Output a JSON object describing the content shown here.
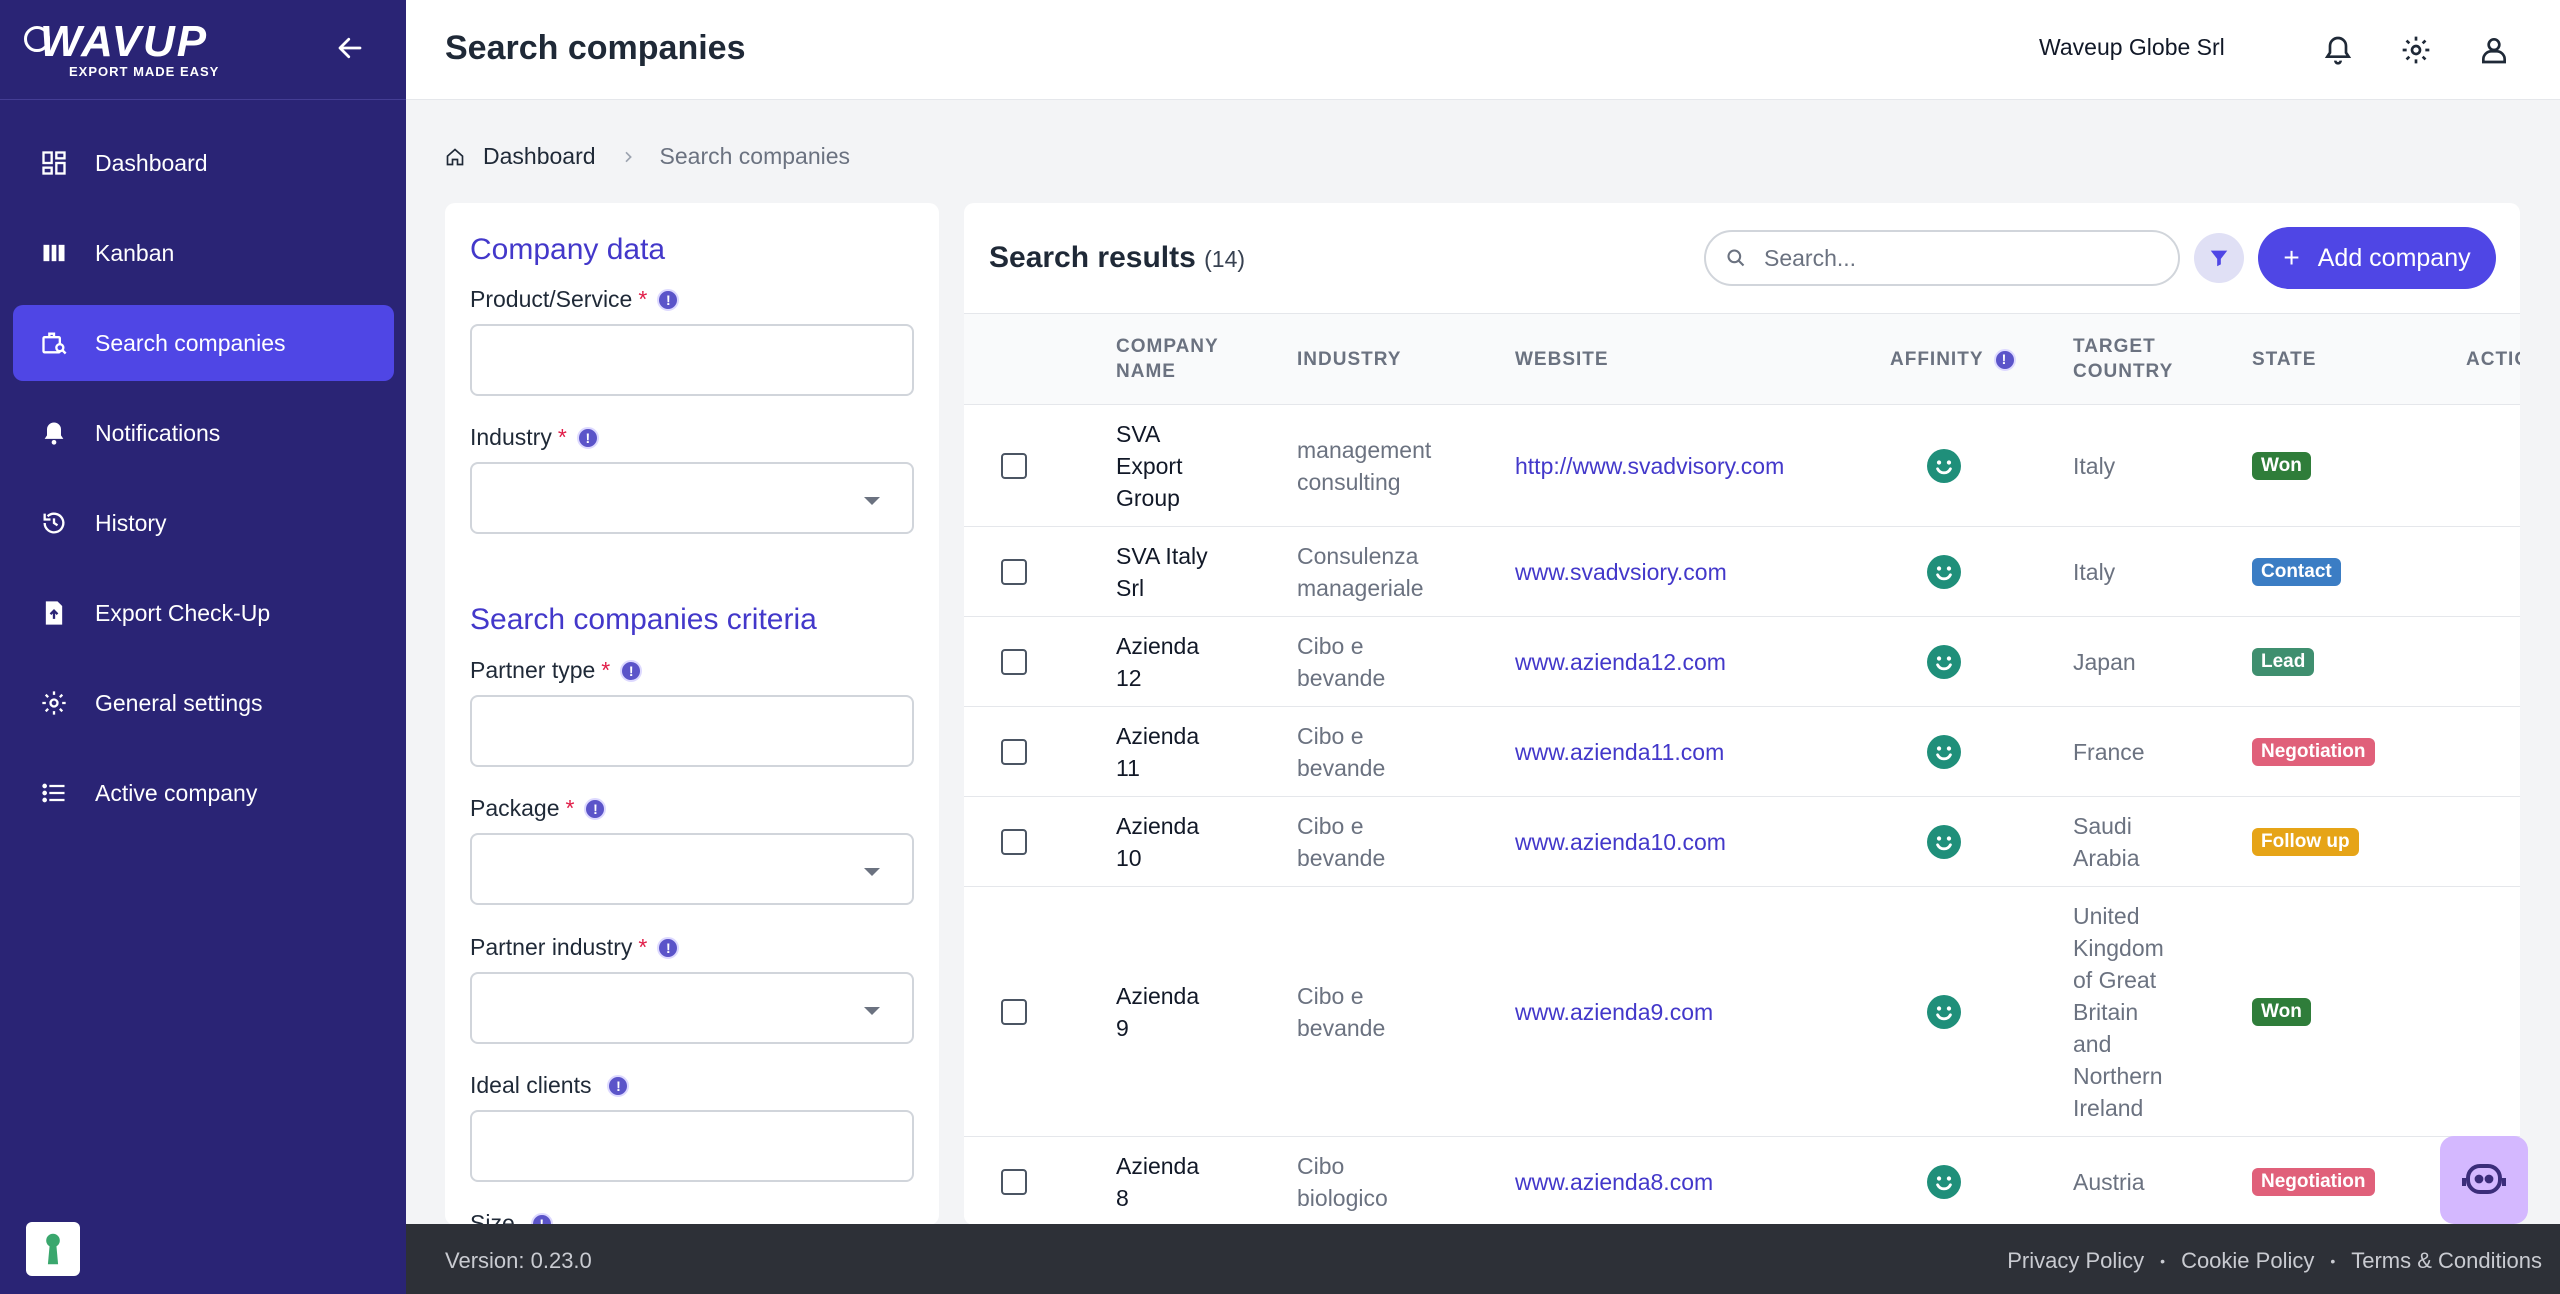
{
  "brand": {
    "name": "WAVUP",
    "tagline": "EXPORT MADE EASY"
  },
  "sidebar": {
    "items": [
      {
        "label": "Dashboard",
        "icon": "dashboard-icon"
      },
      {
        "label": "Kanban",
        "icon": "kanban-icon"
      },
      {
        "label": "Search companies",
        "icon": "search-companies-icon",
        "active": true
      },
      {
        "label": "Notifications",
        "icon": "bell-icon"
      },
      {
        "label": "History",
        "icon": "history-icon"
      },
      {
        "label": "Export Check-Up",
        "icon": "export-checkup-icon"
      },
      {
        "label": "General settings",
        "icon": "gear-icon"
      },
      {
        "label": "Active company",
        "icon": "list-icon"
      }
    ]
  },
  "header": {
    "title": "Search companies",
    "organization": "Waveup Globe Srl"
  },
  "breadcrumb": {
    "home": "Dashboard",
    "current": "Search companies"
  },
  "form": {
    "company_data_title": "Company data",
    "product_label": "Product/Service",
    "industry_label": "Industry",
    "criteria_title": "Search companies criteria",
    "partner_type_label": "Partner type",
    "package_label": "Package",
    "partner_industry_label": "Partner industry",
    "ideal_clients_label": "Ideal clients",
    "size_label": "Size",
    "required_mark": "*",
    "info_mark": "!"
  },
  "results": {
    "title": "Search results",
    "count": "(14)",
    "search_placeholder": "Search...",
    "add_label": "Add company",
    "add_plus": "+",
    "columns": {
      "name": [
        "COMPANY",
        "NAME"
      ],
      "industry": "INDUSTRY",
      "website": "WEBSITE",
      "affinity": "AFFINITY",
      "country": [
        "TARGET",
        "COUNTRY"
      ],
      "state": "STATE",
      "actions": "ACTIONS"
    },
    "rows": [
      {
        "name": [
          "SVA",
          "Export",
          "Group"
        ],
        "industry": [
          "management",
          "consulting"
        ],
        "website": "http://www.svadvisory.com",
        "country": [
          "Italy"
        ],
        "state": "Won"
      },
      {
        "name": [
          "SVA Italy",
          "Srl"
        ],
        "industry": [
          "Consulenza",
          "manageriale"
        ],
        "website": "www.svadvsiory.com",
        "country": [
          "Italy"
        ],
        "state": "Contact"
      },
      {
        "name": [
          "Azienda",
          "12"
        ],
        "industry": [
          "Cibo e",
          "bevande"
        ],
        "website": "www.azienda12.com",
        "country": [
          "Japan"
        ],
        "state": "Lead"
      },
      {
        "name": [
          "Azienda",
          "11"
        ],
        "industry": [
          "Cibo e",
          "bevande"
        ],
        "website": "www.azienda11.com",
        "country": [
          "France"
        ],
        "state": "Negotiation"
      },
      {
        "name": [
          "Azienda",
          "10"
        ],
        "industry": [
          "Cibo e",
          "bevande"
        ],
        "website": "www.azienda10.com",
        "country": [
          "Saudi",
          "Arabia"
        ],
        "state": "Follow up"
      },
      {
        "name": [
          "Azienda",
          "9"
        ],
        "industry": [
          "Cibo e",
          "bevande"
        ],
        "website": "www.azienda9.com",
        "country": [
          "United",
          "Kingdom",
          "of Great",
          "Britain",
          "and",
          "Northern",
          "Ireland"
        ],
        "state": "Won"
      },
      {
        "name": [
          "Azienda",
          "8"
        ],
        "industry": [
          "Cibo",
          "biologico"
        ],
        "website": "www.azienda8.com",
        "country": [
          "Austria"
        ],
        "state": "Negotiation"
      }
    ]
  },
  "state_colors": {
    "Won": "#2f7d3a",
    "Contact": "#3b7dc4",
    "Lead": "#3f8f6f",
    "Negotiation": "#e0607a",
    "Follow up": "#e6a417"
  },
  "footer": {
    "version": "Version: 0.23.0",
    "privacy": "Privacy Policy",
    "cookie": "Cookie Policy",
    "terms": "Terms & Conditions",
    "separator": "•"
  }
}
